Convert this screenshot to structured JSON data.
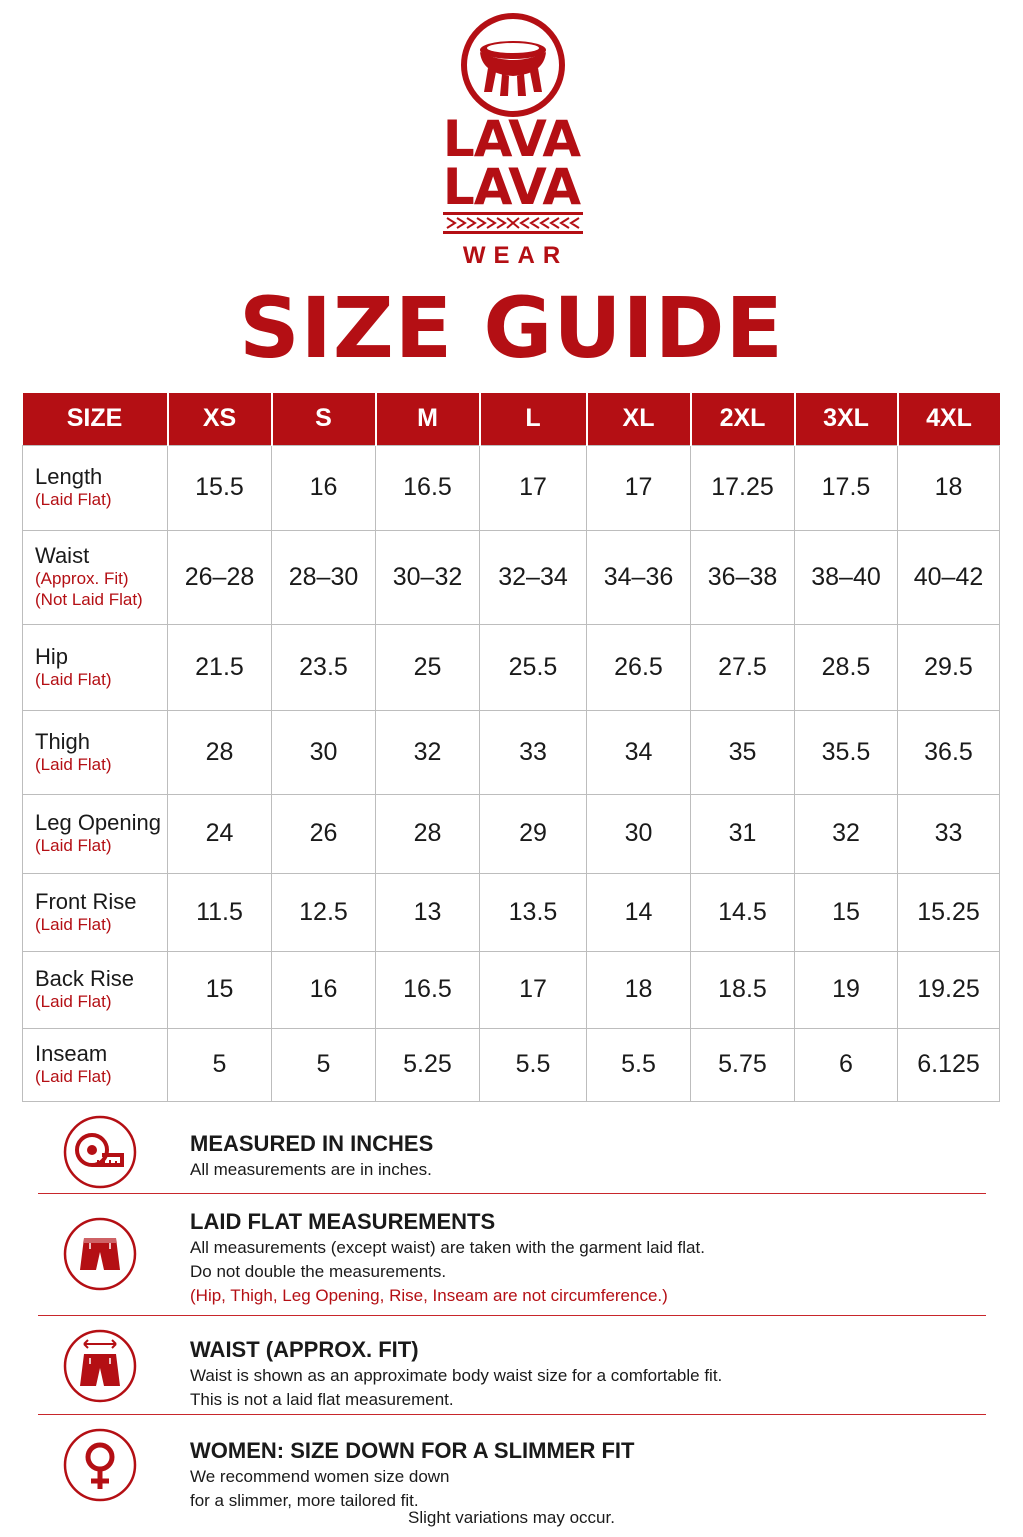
{
  "brand": {
    "line1": "LAVA",
    "line2": "LAVA",
    "line3": "WEAR"
  },
  "title": "SIZE GUIDE",
  "table": {
    "header": [
      "SIZE",
      "XS",
      "S",
      "M",
      "L",
      "XL",
      "2XL",
      "3XL",
      "4XL"
    ],
    "rows": [
      {
        "name": "Length",
        "subs": [
          "(Laid Flat)"
        ],
        "values": [
          "15.5",
          "16",
          "16.5",
          "17",
          "17",
          "17.25",
          "17.5",
          "18"
        ]
      },
      {
        "name": "Waist",
        "subs": [
          "(Approx. Fit)",
          "(Not Laid Flat)"
        ],
        "values": [
          "26–28",
          "28–30",
          "30–32",
          "32–34",
          "34–36",
          "36–38",
          "38–40",
          "40–42"
        ]
      },
      {
        "name": "Hip",
        "subs": [
          "(Laid Flat)"
        ],
        "values": [
          "21.5",
          "23.5",
          "25",
          "25.5",
          "26.5",
          "27.5",
          "28.5",
          "29.5"
        ]
      },
      {
        "name": "Thigh",
        "subs": [
          "(Laid Flat)"
        ],
        "values": [
          "28",
          "30",
          "32",
          "33",
          "34",
          "35",
          "35.5",
          "36.5"
        ]
      },
      {
        "name": "Leg Opening",
        "subs": [
          "(Laid Flat)"
        ],
        "values": [
          "24",
          "26",
          "28",
          "29",
          "30",
          "31",
          "32",
          "33"
        ]
      },
      {
        "name": "Front Rise",
        "subs": [
          "(Laid Flat)"
        ],
        "values": [
          "11.5",
          "12.5",
          "13",
          "13.5",
          "14",
          "14.5",
          "15",
          "15.25"
        ]
      },
      {
        "name": "Back Rise",
        "subs": [
          "(Laid Flat)"
        ],
        "values": [
          "15",
          "16",
          "16.5",
          "17",
          "18",
          "18.5",
          "19",
          "19.25"
        ]
      },
      {
        "name": "Inseam",
        "subs": [
          "(Laid Flat)"
        ],
        "values": [
          "5",
          "5",
          "5.25",
          "5.5",
          "5.5",
          "5.75",
          "6",
          "6.125"
        ]
      }
    ]
  },
  "notes": [
    {
      "icon": "measuring-tape-icon",
      "title": "MEASURED IN INCHES",
      "lines": [
        "All measurements are in inches."
      ],
      "red_line": ""
    },
    {
      "icon": "shorts-icon",
      "title": "LAID FLAT MEASUREMENTS",
      "lines": [
        "All measurements (except waist) are taken with the garment laid flat.",
        "Do not double the measurements."
      ],
      "red_line": "(Hip, Thigh, Leg Opening, Rise, Inseam are not circumference.)"
    },
    {
      "icon": "shorts-waist-arrow-icon",
      "title": "WAIST (APPROX. FIT)",
      "lines": [
        "Waist is shown as an approximate body waist size for a comfortable fit.",
        "This is not a laid flat measurement."
      ],
      "red_line": ""
    },
    {
      "icon": "female-symbol-icon",
      "title": "WOMEN: SIZE DOWN FOR A SLIMMER FIT",
      "lines": [
        "We recommend women size down",
        "for a slimmer, more tailored fit."
      ],
      "red_line": ""
    }
  ],
  "footer": "Slight variations may occur.",
  "colors": {
    "brand_red": "#b40f14",
    "grid": "#bdbdbd",
    "text": "#1a1a1a"
  }
}
